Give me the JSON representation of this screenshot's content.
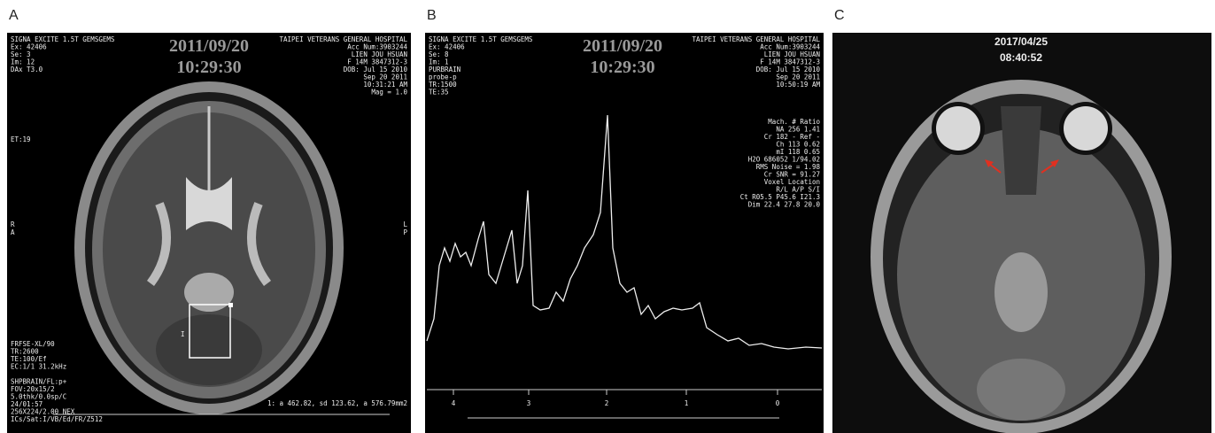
{
  "panels": [
    {
      "label": "A",
      "date": "2011/09/20",
      "time": "10:29:30",
      "overlay_left": [
        "SIGNA EXCITE 1.5T GEMSGEMS",
        "Ex: 42406",
        "Se: 3",
        "Im: 12",
        "DAx T3.0"
      ],
      "overlay_right": [
        "TAIPEI VETERANS GENERAL HOSPITAL",
        "Acc Num:3903244",
        "LIEN JOU HSUAN",
        "F 14M 3847312-3",
        "DOB: Jul 15 2010",
        "Sep 20 2011",
        "10:31:21 AM",
        "Mag = 1.0"
      ],
      "echo": "ET:19",
      "side_left": [
        "R",
        "A"
      ],
      "side_right": [
        "L",
        "P"
      ],
      "roi_marker": "I",
      "bottom_left": [
        "FRFSE-XL/90",
        "TR:2600",
        "TE:100/Ef",
        "EC:1/1 31.2kHz",
        "",
        "SHPBRAIN/FL:p+",
        "FOV:20x15/2",
        "5.0thk/0.0sp/C",
        "24/01:57",
        "256X224/2.00 NEX",
        "ICs/Sat:I/VB/Ed/FR/Z512"
      ],
      "roi_stats": "1: a 462.82, sd 123.62, a 576.79mm2"
    },
    {
      "label": "B",
      "date": "2011/09/20",
      "time": "10:29:30",
      "overlay_left": [
        "SIGNA EXCITE 1.5T GEMSGEMS",
        "Ex: 42406",
        "Se: 8",
        "Im: 1",
        "PURBRAIN",
        "probe-p",
        "TR:1500",
        "TE:35"
      ],
      "overlay_right": [
        "TAIPEI VETERANS GENERAL HOSPITAL",
        "Acc Num:3903244",
        "LIEN JOU HSUAN",
        "F 14M 3847312-3",
        "DOB: Jul 15 2010",
        "Sep 20 2011",
        "10:50:19 AM"
      ],
      "results": [
        "Mach. #   Ratio",
        "NA      256    1.41",
        "Cr      182  - Ref -",
        "Ch      113    0.62",
        "mI      118    0.65",
        "H2O  686052 1/94.02",
        "RMS Noise =    1.98",
        "Cr SNR    =   91.27",
        "Voxel Location",
        "R/L   A/P   S/I",
        "Ct R05.5 P45.6 I21.3",
        "Dim 22.4  27.8  20.0"
      ],
      "axis_ticks": [
        "4",
        "3",
        "2",
        "1",
        "0"
      ]
    },
    {
      "label": "C",
      "date": "2017/04/25",
      "time": "08:40:52"
    }
  ]
}
